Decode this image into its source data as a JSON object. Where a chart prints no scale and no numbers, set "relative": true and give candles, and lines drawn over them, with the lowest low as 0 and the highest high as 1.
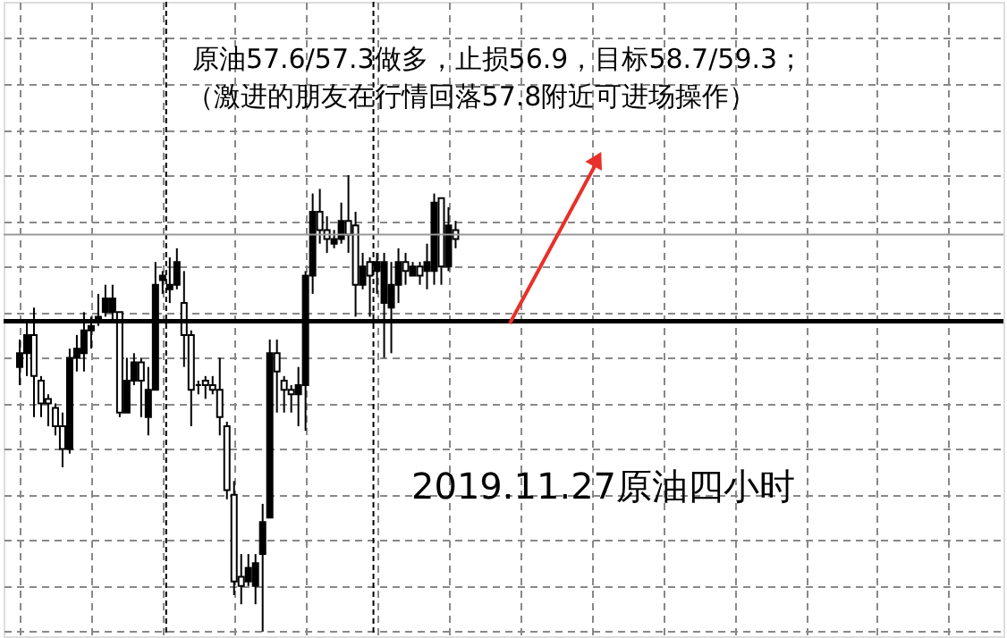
{
  "chart_data": {
    "type": "candlestick",
    "relative": true,
    "title": "原油57.6/57.3做多，止损56.9，目标58.7/59.3；",
    "subtitle": "（激进的朋友在行情回落57.8附近可进场操作）",
    "annotations": [
      "2019.11.27原油四小时"
    ],
    "categories": [
      null,
      null,
      null,
      null,
      null,
      null,
      null,
      null,
      null,
      null,
      null,
      null,
      null,
      null,
      null,
      null,
      null,
      null,
      null,
      null,
      null,
      null,
      null,
      null,
      null,
      null,
      null,
      null,
      null,
      null,
      null,
      null,
      null,
      null,
      null,
      null,
      null,
      null,
      null,
      null,
      null,
      null,
      null,
      null,
      null,
      null,
      null,
      null,
      null,
      null,
      null,
      null,
      null,
      null,
      null,
      null,
      null,
      null,
      null,
      null,
      null,
      null
    ],
    "ohlc": [
      [
        0.61,
        0.64,
        0.54,
        0.58
      ],
      [
        0.65,
        0.68,
        0.56,
        0.61
      ],
      [
        0.56,
        0.71,
        0.47,
        0.65
      ],
      [
        0.5,
        0.56,
        0.47,
        0.55
      ],
      [
        0.5,
        0.52,
        0.45,
        0.51
      ],
      [
        0.45,
        0.5,
        0.43,
        0.49
      ],
      [
        0.4,
        0.48,
        0.36,
        0.45
      ],
      [
        0.6,
        0.62,
        0.39,
        0.4
      ],
      [
        0.62,
        0.65,
        0.57,
        0.6
      ],
      [
        0.66,
        0.7,
        0.57,
        0.61
      ],
      [
        0.67,
        0.69,
        0.62,
        0.66
      ],
      [
        0.69,
        0.74,
        0.67,
        0.68
      ],
      [
        0.73,
        0.76,
        0.69,
        0.7
      ],
      [
        0.73,
        0.76,
        0.68,
        0.7
      ],
      [
        0.48,
        0.7,
        0.47,
        0.7
      ],
      [
        0.55,
        0.6,
        0.48,
        0.48
      ],
      [
        0.59,
        0.61,
        0.54,
        0.55
      ],
      [
        0.55,
        0.6,
        0.47,
        0.59
      ],
      [
        0.53,
        0.58,
        0.43,
        0.47
      ],
      [
        0.76,
        0.81,
        0.53,
        0.53
      ],
      [
        0.78,
        0.79,
        0.74,
        0.77
      ],
      [
        0.76,
        0.82,
        0.72,
        0.75
      ],
      [
        0.81,
        0.84,
        0.75,
        0.76
      ],
      [
        0.65,
        0.79,
        0.58,
        0.72
      ],
      [
        0.53,
        0.66,
        0.45,
        0.65
      ],
      [
        0.54,
        0.55,
        0.52,
        0.54
      ],
      [
        0.54,
        0.56,
        0.51,
        0.55
      ],
      [
        0.53,
        0.56,
        0.52,
        0.54
      ],
      [
        0.47,
        0.6,
        0.43,
        0.53
      ],
      [
        0.31,
        0.46,
        0.29,
        0.45
      ],
      [
        0.11,
        0.33,
        0.08,
        0.3
      ],
      [
        0.1,
        0.17,
        0.06,
        0.12
      ],
      [
        0.14,
        0.17,
        0.1,
        0.11
      ],
      [
        0.15,
        0.17,
        0.06,
        0.1
      ],
      [
        0.24,
        0.28,
        0.0,
        0.17
      ],
      [
        0.61,
        0.64,
        0.25,
        0.25
      ],
      [
        0.57,
        0.64,
        0.48,
        0.61
      ],
      [
        0.53,
        0.56,
        0.48,
        0.55
      ],
      [
        0.52,
        0.54,
        0.48,
        0.53
      ],
      [
        0.54,
        0.58,
        0.45,
        0.52
      ],
      [
        0.78,
        0.79,
        0.44,
        0.54
      ],
      [
        0.92,
        0.96,
        0.74,
        0.78
      ],
      [
        0.88,
        0.97,
        0.85,
        0.92
      ],
      [
        0.86,
        0.91,
        0.83,
        0.88
      ],
      [
        0.86,
        0.88,
        0.84,
        0.85
      ],
      [
        0.9,
        0.94,
        0.85,
        0.86
      ],
      [
        0.87,
        1.0,
        0.83,
        0.9
      ],
      [
        0.76,
        0.92,
        0.69,
        0.89
      ],
      [
        0.8,
        0.83,
        0.75,
        0.76
      ],
      [
        0.78,
        0.82,
        0.69,
        0.81
      ],
      [
        0.81,
        0.83,
        0.74,
        0.79
      ],
      [
        0.81,
        0.83,
        0.6,
        0.72
      ],
      [
        0.76,
        0.81,
        0.61,
        0.71
      ],
      [
        0.81,
        0.84,
        0.72,
        0.76
      ],
      [
        0.79,
        0.83,
        0.76,
        0.81
      ],
      [
        0.8,
        0.81,
        0.78,
        0.78
      ],
      [
        0.78,
        0.81,
        0.76,
        0.8
      ],
      [
        0.81,
        0.85,
        0.75,
        0.79
      ],
      [
        0.94,
        0.96,
        0.76,
        0.79
      ],
      [
        0.8,
        0.95,
        0.76,
        0.95
      ],
      [
        0.89,
        0.93,
        0.79,
        0.8
      ],
      [
        0.86,
        0.9,
        0.84,
        0.88
      ]
    ],
    "ref_lines": [
      {
        "axis": "y",
        "value": 0.68,
        "color": "#000000"
      },
      {
        "axis": "y",
        "value": 0.87,
        "color": "#999999"
      }
    ],
    "grid": true
  }
}
